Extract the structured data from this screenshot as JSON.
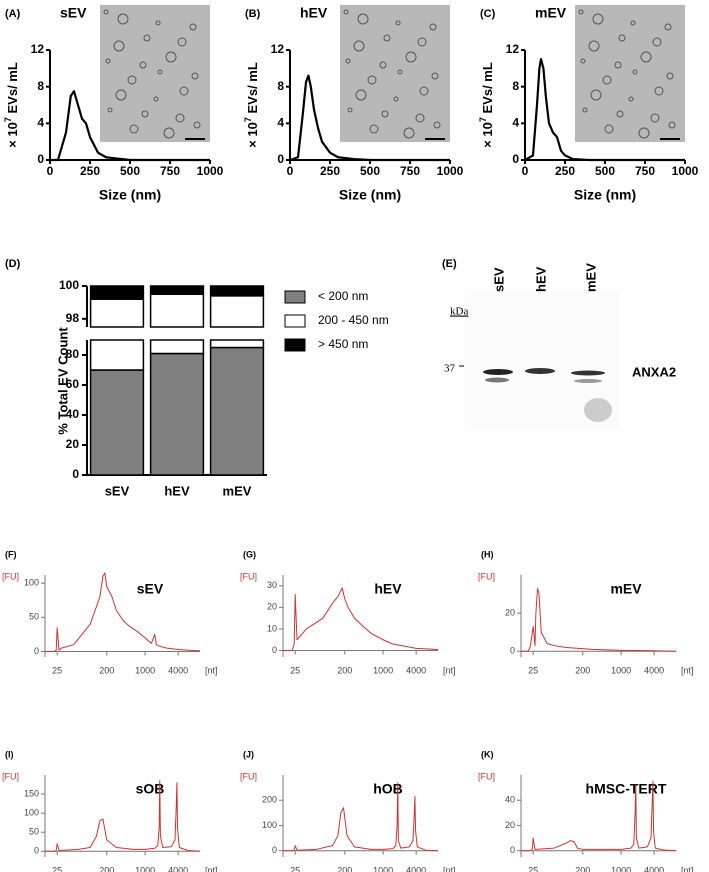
{
  "chart_data": [
    {
      "type": "line",
      "panel": "(A)",
      "title": "sEV",
      "xlabel": "Size (nm)",
      "ylabel": [
        "× 10",
        "7",
        " EVs/ mL"
      ],
      "x": [
        0,
        50,
        100,
        130,
        150,
        175,
        200,
        225,
        250,
        300,
        350,
        400,
        500,
        1000
      ],
      "values": [
        0,
        0,
        3,
        7,
        7.5,
        6,
        4.5,
        4,
        2.5,
        0.8,
        0.3,
        0.2,
        0,
        0
      ],
      "color": "#000000",
      "xlim": [
        0,
        1000
      ],
      "xticks": [
        0,
        250,
        500,
        750,
        1000
      ],
      "ylim": [
        0,
        12
      ],
      "yticks": [
        0,
        4,
        8,
        12
      ]
    },
    {
      "type": "line",
      "panel": "(B)",
      "title": "hEV",
      "xlabel": "Size (nm)",
      "ylabel": [
        "× 10",
        "7",
        " EVs/ mL"
      ],
      "x": [
        0,
        50,
        80,
        100,
        115,
        130,
        150,
        175,
        200,
        250,
        300,
        400,
        500,
        1000
      ],
      "values": [
        0,
        0.3,
        5,
        8.5,
        9.2,
        8,
        5.5,
        3.5,
        2,
        0.8,
        0.3,
        0.1,
        0,
        0
      ],
      "color": "#000000",
      "xlim": [
        0,
        1000
      ],
      "xticks": [
        0,
        250,
        500,
        750,
        1000
      ],
      "ylim": [
        0,
        12
      ],
      "yticks": [
        0,
        4,
        8,
        12
      ]
    },
    {
      "type": "line",
      "panel": "(C)",
      "title": "mEV",
      "xlabel": "Size (nm)",
      "ylabel": [
        "× 10",
        "7",
        " EVs/ mL"
      ],
      "x": [
        0,
        50,
        75,
        90,
        100,
        115,
        130,
        150,
        175,
        200,
        225,
        250,
        300,
        400,
        1000
      ],
      "values": [
        0,
        0.5,
        6,
        10,
        11,
        10,
        7,
        4,
        3,
        2.5,
        1,
        0.5,
        0.1,
        0,
        0
      ],
      "color": "#000000",
      "xlim": [
        0,
        1000
      ],
      "xticks": [
        0,
        250,
        500,
        750,
        1000
      ],
      "ylim": [
        0,
        12
      ],
      "yticks": [
        0,
        4,
        8,
        12
      ]
    },
    {
      "type": "stacked_bar",
      "panel": "(D)",
      "ylabel": "% Total EV Count",
      "categories": [
        "sEV",
        "hEV",
        "mEV"
      ],
      "series": [
        {
          "name": "< 200 nm",
          "color": "#808080",
          "values": [
            70,
            81,
            85
          ]
        },
        {
          "name": "200 - 450 nm",
          "color": "#ffffff",
          "values": [
            29.2,
            18.5,
            14.4
          ]
        },
        {
          "name": "> 450 nm",
          "color": "#000000",
          "values": [
            0.8,
            0.5,
            0.6
          ]
        }
      ],
      "ysegments": [
        {
          "ylim": [
            0,
            90
          ],
          "yticks": [
            0,
            20,
            40,
            60,
            80
          ]
        },
        {
          "ylim": [
            97.5,
            100
          ],
          "yticks": [
            98,
            100
          ]
        }
      ]
    },
    {
      "type": "line",
      "panel": "(F)",
      "title": "sEV",
      "xlabel": "[nt]",
      "ylabel": "[FU]",
      "xscale": "log",
      "color": "#cc3333",
      "x": [
        15,
        22,
        24,
        25,
        27,
        30,
        50,
        100,
        150,
        170,
        185,
        200,
        250,
        300,
        400,
        500,
        700,
        1000,
        1300,
        1500,
        1600,
        1800,
        2500,
        4000,
        6000,
        10000
      ],
      "values": [
        0,
        0,
        2,
        35,
        2,
        5,
        10,
        40,
        80,
        110,
        115,
        95,
        80,
        60,
        45,
        38,
        30,
        20,
        12,
        25,
        10,
        8,
        5,
        3,
        2,
        1
      ],
      "xlim": [
        15,
        10000
      ],
      "xticks": [
        25,
        200,
        1000,
        4000
      ],
      "ylim": [
        -8,
        112
      ],
      "yticks": [
        0,
        50,
        100
      ]
    },
    {
      "type": "line",
      "panel": "(G)",
      "title": "hEV",
      "xlabel": "[nt]",
      "ylabel": "[FU]",
      "xscale": "log",
      "color": "#cc3333",
      "x": [
        15,
        22,
        24,
        25,
        27,
        40,
        80,
        120,
        150,
        180,
        200,
        230,
        300,
        400,
        600,
        1000,
        1500,
        2500,
        4000,
        10000
      ],
      "values": [
        0,
        0,
        3,
        26,
        5,
        10,
        15,
        22,
        25,
        29,
        24,
        20,
        15,
        12,
        8,
        5,
        3,
        2,
        1,
        0.5
      ],
      "xlim": [
        15,
        10000
      ],
      "xticks": [
        25,
        200,
        1000,
        4000
      ],
      "ylim": [
        -3,
        35
      ],
      "yticks": [
        0,
        10,
        20,
        30
      ]
    },
    {
      "type": "line",
      "panel": "(H)",
      "title": "mEV",
      "xlabel": "[nt]",
      "ylabel": "[FU]",
      "xscale": "log",
      "color": "#cc3333",
      "x": [
        15,
        20,
        22,
        25,
        27,
        28,
        30,
        32,
        35,
        45,
        60,
        100,
        300,
        1000,
        4000,
        10000
      ],
      "values": [
        0,
        0,
        2,
        13,
        3,
        20,
        33,
        30,
        10,
        4,
        3,
        2,
        1,
        0.5,
        0.3,
        0
      ],
      "xlim": [
        15,
        10000
      ],
      "xticks": [
        25,
        200,
        1000,
        4000
      ],
      "ylim": [
        -3,
        40
      ],
      "yticks": [
        0,
        20
      ]
    },
    {
      "type": "line",
      "panel": "(I)",
      "title": "sOB",
      "xlabel": "[nt]",
      "ylabel": "[FU]",
      "xscale": "log",
      "color": "#cc3333",
      "x": [
        15,
        22,
        24,
        25,
        27,
        60,
        100,
        130,
        150,
        170,
        200,
        300,
        600,
        1000,
        1500,
        1700,
        1800,
        1850,
        1900,
        2100,
        3000,
        3500,
        3700,
        3800,
        3900,
        4200,
        6000,
        10000
      ],
      "values": [
        0,
        0,
        2,
        20,
        2,
        5,
        10,
        40,
        80,
        85,
        30,
        10,
        5,
        5,
        8,
        15,
        60,
        185,
        40,
        10,
        12,
        30,
        120,
        180,
        60,
        10,
        2,
        0
      ],
      "xlim": [
        15,
        10000
      ],
      "xticks": [
        25,
        200,
        1000,
        4000
      ],
      "ylim": [
        -15,
        200
      ],
      "yticks": [
        0,
        50,
        100,
        150
      ]
    },
    {
      "type": "line",
      "panel": "(J)",
      "title": "hOB",
      "xlabel": "[nt]",
      "ylabel": "[FU]",
      "xscale": "log",
      "color": "#cc3333",
      "x": [
        15,
        22,
        24,
        25,
        27,
        60,
        120,
        150,
        170,
        190,
        220,
        300,
        600,
        1000,
        1500,
        1700,
        1800,
        1850,
        1900,
        2100,
        3000,
        3500,
        3700,
        3800,
        3900,
        4200,
        6000,
        10000
      ],
      "values": [
        0,
        0,
        2,
        20,
        2,
        5,
        20,
        60,
        150,
        170,
        60,
        15,
        5,
        5,
        8,
        20,
        100,
        270,
        40,
        10,
        15,
        40,
        150,
        215,
        80,
        15,
        2,
        0
      ],
      "xlim": [
        15,
        10000
      ],
      "xticks": [
        25,
        200,
        1000,
        4000
      ],
      "ylim": [
        -25,
        300
      ],
      "yticks": [
        0,
        100,
        200
      ]
    },
    {
      "type": "line",
      "panel": "(K)",
      "title": "hMSC-TERT",
      "xlabel": "[nt]",
      "ylabel": "[FU]",
      "xscale": "log",
      "color": "#cc3333",
      "x": [
        15,
        22,
        24,
        25,
        27,
        60,
        100,
        120,
        140,
        160,
        200,
        400,
        1000,
        1500,
        1700,
        1800,
        1850,
        1900,
        2100,
        3000,
        3500,
        3700,
        3800,
        3900,
        4200,
        6000,
        10000
      ],
      "values": [
        0,
        0,
        1,
        10,
        1,
        2,
        6,
        8,
        7,
        2,
        1,
        1,
        1,
        2,
        5,
        30,
        52,
        10,
        2,
        3,
        10,
        40,
        55,
        15,
        2,
        0.5,
        0
      ],
      "xlim": [
        15,
        10000
      ],
      "xticks": [
        25,
        200,
        1000,
        4000
      ],
      "ylim": [
        -5,
        60
      ],
      "yticks": [
        0,
        20,
        40
      ]
    }
  ],
  "blot": {
    "panel": "(E)",
    "lanes": [
      "sEV",
      "hEV",
      "mEV"
    ],
    "unit": "kDa",
    "marker": "37",
    "protein": "ANXA2"
  }
}
